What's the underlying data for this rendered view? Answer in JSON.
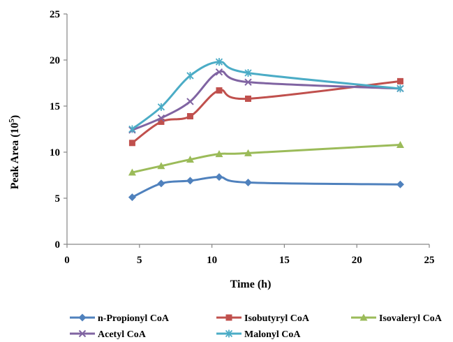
{
  "chart_data": {
    "type": "line",
    "title": "",
    "xlabel": "Time (h)",
    "ylabel": "Peak Area (10",
    "ylabel_sup": "5",
    "ylabel_end": ")",
    "xlim": [
      0,
      25
    ],
    "ylim": [
      0,
      25
    ],
    "xticks": [
      0,
      5,
      10,
      15,
      20,
      25
    ],
    "yticks": [
      0,
      5,
      10,
      15,
      20,
      25
    ],
    "grid": false,
    "legend_position": "bottom",
    "x": [
      4.5,
      6.5,
      8.5,
      10.5,
      12.5,
      23
    ],
    "series": [
      {
        "name": "n-Propionyl CoA",
        "color": "#4f81bd",
        "marker": "diamond",
        "values": [
          5.1,
          6.6,
          6.9,
          7.3,
          6.7,
          6.5
        ]
      },
      {
        "name": "Isobutyryl CoA",
        "color": "#c0504d",
        "marker": "square",
        "values": [
          11.0,
          13.3,
          13.9,
          16.7,
          15.8,
          17.7
        ]
      },
      {
        "name": "Isovaleryl CoA",
        "color": "#9bbb59",
        "marker": "triangle",
        "values": [
          7.8,
          8.5,
          9.2,
          9.8,
          9.9,
          10.8
        ]
      },
      {
        "name": "Acetyl CoA",
        "color": "#8064a2",
        "marker": "x",
        "values": [
          12.4,
          13.7,
          15.5,
          18.7,
          17.6,
          16.9
        ]
      },
      {
        "name": "Malonyl CoA",
        "color": "#4bacc6",
        "marker": "star",
        "values": [
          12.5,
          14.9,
          18.3,
          19.8,
          18.6,
          16.9
        ]
      }
    ]
  }
}
